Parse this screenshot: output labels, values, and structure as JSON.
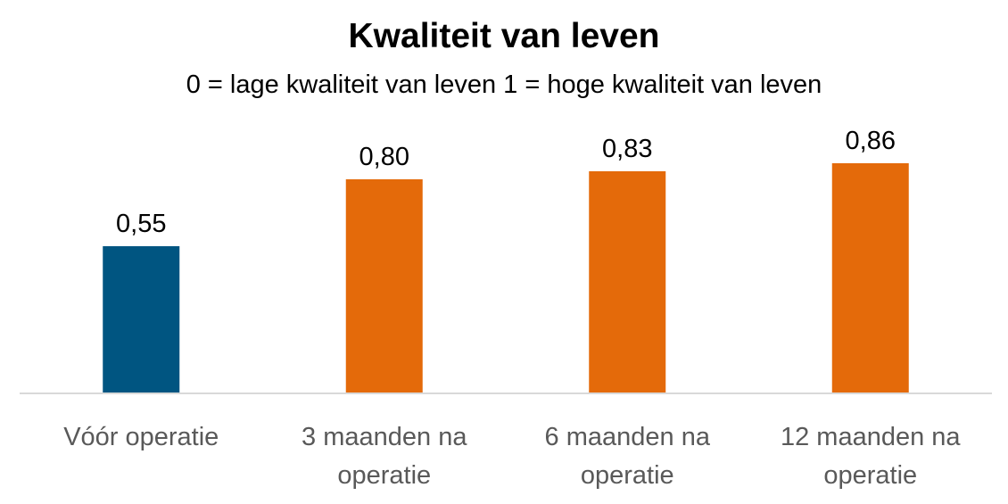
{
  "chart_data": {
    "type": "bar",
    "title": "Kwaliteit van leven",
    "subtitle": "0 = lage kwaliteit van leven  1 = hoge kwaliteit van leven",
    "categories": [
      [
        "Vóór operatie"
      ],
      [
        "3 maanden na",
        "operatie"
      ],
      [
        "6 maanden na",
        "operatie"
      ],
      [
        "12 maanden na",
        "operatie"
      ]
    ],
    "values": [
      0.55,
      0.8,
      0.83,
      0.86
    ],
    "data_labels": [
      "0,55",
      "0,80",
      "0,83",
      "0,86"
    ],
    "bar_colors": [
      "#005581",
      "#E46A0A",
      "#E46A0A",
      "#E46A0A"
    ],
    "axis_color": "#D9D9D9",
    "ylim": [
      0,
      1
    ],
    "grid": false,
    "legend": "none"
  }
}
